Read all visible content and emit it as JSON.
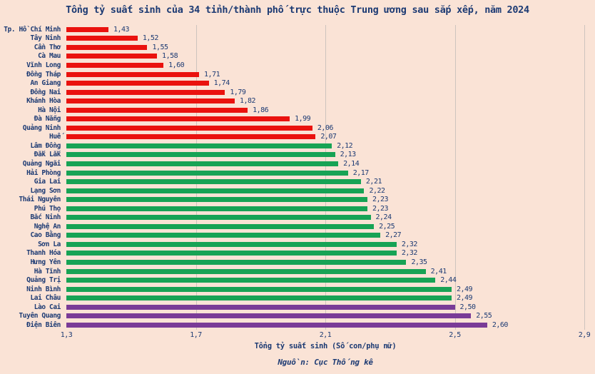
{
  "title": "Tổng tỷ suất sinh của 34 tỉnh/thành phố trực thuộc Trung ương sau sắp xếp, năm 2024",
  "xlabel": "Tổng tỷ suất sinh (Số con/phụ nữ)",
  "source": "Nguồn: Cục Thống kê",
  "colors": {
    "background": "#fae3d6",
    "text": "#1c3a73",
    "grid": "#cdc4be",
    "low": "#ea120e",
    "mid": "#17a355",
    "high": "#7a3b97"
  },
  "chart_data": {
    "type": "bar",
    "orientation": "horizontal",
    "title": "Tổng tỷ suất sinh của 34 tỉnh/thành phố trực thuộc Trung ương sau sắp xếp, năm 2024",
    "xlabel": "Tổng tỷ suất sinh (Số con/phụ nữ)",
    "xlim": [
      1.3,
      2.9
    ],
    "grid": true,
    "xtick_labels": [
      "1,3",
      "1,7",
      "2,1",
      "2,5",
      "2,9"
    ],
    "xtick_values": [
      1.3,
      1.7,
      2.1,
      2.5,
      2.9
    ],
    "gridline_values": [
      1.7,
      2.1,
      2.5,
      2.9
    ],
    "categories": [
      "Tp. Hồ Chí Minh",
      "Tây Ninh",
      "Cần Thơ",
      "Cà Mau",
      "Vĩnh Long",
      "Đồng Tháp",
      "An Giang",
      "Đồng Nai",
      "Khánh Hòa",
      "Hà Nội",
      "Đà Nẵng",
      "Quảng Ninh",
      "Huế",
      "Lâm Đồng",
      "Đắk Lắk",
      "Quảng Ngãi",
      "Hải Phòng",
      "Gia Lai",
      "Lạng Sơn",
      "Thái Nguyên",
      "Phú Thọ",
      "Bắc Ninh",
      "Nghệ An",
      "Cao Bằng",
      "Sơn La",
      "Thanh Hóa",
      "Hưng Yên",
      "Hà Tĩnh",
      "Quảng Trị",
      "Ninh Bình",
      "Lai Châu",
      "Lào Cai",
      "Tuyên Quang",
      "Điện Biên"
    ],
    "values": [
      1.43,
      1.52,
      1.55,
      1.58,
      1.6,
      1.71,
      1.74,
      1.79,
      1.82,
      1.86,
      1.99,
      2.06,
      2.07,
      2.12,
      2.13,
      2.14,
      2.17,
      2.21,
      2.22,
      2.23,
      2.23,
      2.24,
      2.25,
      2.27,
      2.32,
      2.32,
      2.35,
      2.41,
      2.44,
      2.49,
      2.49,
      2.5,
      2.55,
      2.6
    ],
    "value_labels": [
      "1,43",
      "1,52",
      "1,55",
      "1,58",
      "1,60",
      "1,71",
      "1,74",
      "1,79",
      "1,82",
      "1,86",
      "1,99",
      "2,06",
      "2,07",
      "2,12",
      "2,13",
      "2,14",
      "2,17",
      "2,21",
      "2,22",
      "2,23",
      "2,23",
      "2,24",
      "2,25",
      "2,27",
      "2,32",
      "2,32",
      "2,35",
      "2,41",
      "2,44",
      "2,49",
      "2,49",
      "2,50",
      "2,55",
      "2,60"
    ],
    "groups": [
      "low",
      "low",
      "low",
      "low",
      "low",
      "low",
      "low",
      "low",
      "low",
      "low",
      "low",
      "low",
      "low",
      "mid",
      "mid",
      "mid",
      "mid",
      "mid",
      "mid",
      "mid",
      "mid",
      "mid",
      "mid",
      "mid",
      "mid",
      "mid",
      "mid",
      "mid",
      "mid",
      "mid",
      "mid",
      "high",
      "high",
      "high"
    ],
    "legend": null
  }
}
